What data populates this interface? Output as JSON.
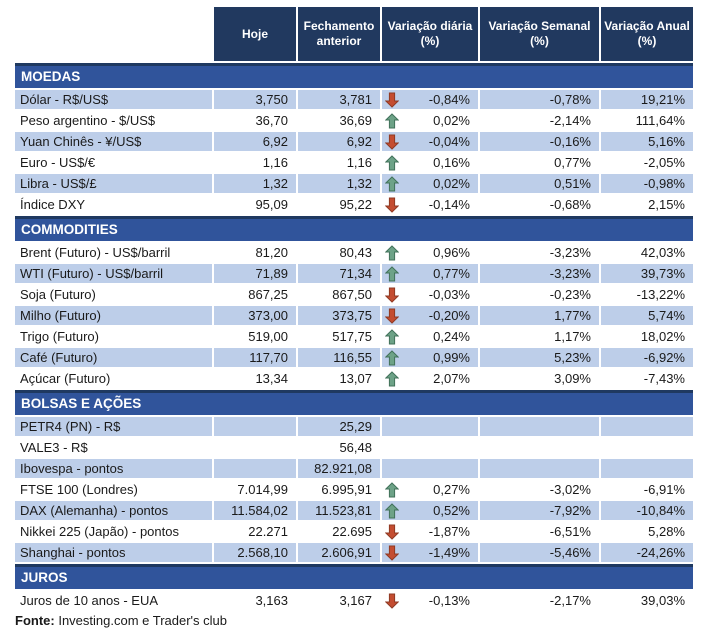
{
  "chart_data": {
    "type": "table",
    "columns": [
      "Hoje",
      "Fechamento anterior",
      "Variação diária (%)",
      "Variação Semanal (%)",
      "Variação Anual (%)"
    ],
    "sections": [
      {
        "title": "MOEDAS",
        "rows": [
          {
            "label": "Dólar - R$/US$",
            "hoje": "3,750",
            "fechamento": "3,781",
            "arrow": "down",
            "diaria": "-0,84%",
            "semanal": "-0,78%",
            "anual": "19,21%",
            "shaded": true
          },
          {
            "label": "Peso argentino - $/US$",
            "hoje": "36,70",
            "fechamento": "36,69",
            "arrow": "up",
            "diaria": "0,02%",
            "semanal": "-2,14%",
            "anual": "111,64%",
            "shaded": false
          },
          {
            "label": "Yuan Chinês - ¥/US$",
            "hoje": "6,92",
            "fechamento": "6,92",
            "arrow": "down",
            "diaria": "-0,04%",
            "semanal": "-0,16%",
            "anual": "5,16%",
            "shaded": true
          },
          {
            "label": "Euro - US$/€",
            "hoje": "1,16",
            "fechamento": "1,16",
            "arrow": "up",
            "diaria": "0,16%",
            "semanal": "0,77%",
            "anual": "-2,05%",
            "shaded": false
          },
          {
            "label": "Libra - US$/£",
            "hoje": "1,32",
            "fechamento": "1,32",
            "arrow": "up",
            "diaria": "0,02%",
            "semanal": "0,51%",
            "anual": "-0,98%",
            "shaded": true
          },
          {
            "label": "Índice DXY",
            "hoje": "95,09",
            "fechamento": "95,22",
            "arrow": "down",
            "diaria": "-0,14%",
            "semanal": "-0,68%",
            "anual": "2,15%",
            "shaded": false
          }
        ]
      },
      {
        "title": "COMMODITIES",
        "rows": [
          {
            "label": "Brent (Futuro) - US$/barril",
            "hoje": "81,20",
            "fechamento": "80,43",
            "arrow": "up",
            "diaria": "0,96%",
            "semanal": "-3,23%",
            "anual": "42,03%",
            "shaded": false
          },
          {
            "label": "WTI (Futuro) - US$/barril",
            "hoje": "71,89",
            "fechamento": "71,34",
            "arrow": "up",
            "diaria": "0,77%",
            "semanal": "-3,23%",
            "anual": "39,73%",
            "shaded": true
          },
          {
            "label": "Soja (Futuro)",
            "hoje": "867,25",
            "fechamento": "867,50",
            "arrow": "down",
            "diaria": "-0,03%",
            "semanal": "-0,23%",
            "anual": "-13,22%",
            "shaded": false
          },
          {
            "label": "Milho (Futuro)",
            "hoje": "373,00",
            "fechamento": "373,75",
            "arrow": "down",
            "diaria": "-0,20%",
            "semanal": "1,77%",
            "anual": "5,74%",
            "shaded": true
          },
          {
            "label": "Trigo (Futuro)",
            "hoje": "519,00",
            "fechamento": "517,75",
            "arrow": "up",
            "diaria": "0,24%",
            "semanal": "1,17%",
            "anual": "18,02%",
            "shaded": false
          },
          {
            "label": "Café (Futuro)",
            "hoje": "117,70",
            "fechamento": "116,55",
            "arrow": "up",
            "diaria": "0,99%",
            "semanal": "5,23%",
            "anual": "-6,92%",
            "shaded": true
          },
          {
            "label": "Açúcar (Futuro)",
            "hoje": "13,34",
            "fechamento": "13,07",
            "arrow": "up",
            "diaria": "2,07%",
            "semanal": "3,09%",
            "anual": "-7,43%",
            "shaded": false
          }
        ]
      },
      {
        "title": "BOLSAS E AÇÕES",
        "rows": [
          {
            "label": "PETR4 (PN) - R$",
            "hoje": "",
            "fechamento": "25,29",
            "arrow": "",
            "diaria": "",
            "semanal": "",
            "anual": "",
            "shaded": true
          },
          {
            "label": "VALE3 - R$",
            "hoje": "",
            "fechamento": "56,48",
            "arrow": "",
            "diaria": "",
            "semanal": "",
            "anual": "",
            "shaded": false
          },
          {
            "label": "Ibovespa - pontos",
            "hoje": "",
            "fechamento": "82.921,08",
            "arrow": "",
            "diaria": "",
            "semanal": "",
            "anual": "",
            "shaded": true
          },
          {
            "label": "FTSE 100 (Londres)",
            "hoje": "7.014,99",
            "fechamento": "6.995,91",
            "arrow": "up",
            "diaria": "0,27%",
            "semanal": "-3,02%",
            "anual": "-6,91%",
            "shaded": false
          },
          {
            "label": "DAX (Alemanha) - pontos",
            "hoje": "11.584,02",
            "fechamento": "11.523,81",
            "arrow": "up",
            "diaria": "0,52%",
            "semanal": "-7,92%",
            "anual": "-10,84%",
            "shaded": true
          },
          {
            "label": "Nikkei 225 (Japão) - pontos",
            "hoje": "22.271",
            "fechamento": "22.695",
            "arrow": "down",
            "diaria": "-1,87%",
            "semanal": "-6,51%",
            "anual": "5,28%",
            "shaded": false
          },
          {
            "label": "Shanghai - pontos",
            "hoje": "2.568,10",
            "fechamento": "2.606,91",
            "arrow": "down",
            "diaria": "-1,49%",
            "semanal": "-5,46%",
            "anual": "-24,26%",
            "shaded": true
          }
        ]
      },
      {
        "title": "JUROS",
        "rows": [
          {
            "label": "Juros de 10 anos - EUA",
            "hoje": "3,163",
            "fechamento": "3,167",
            "arrow": "down",
            "diaria": "-0,13%",
            "semanal": "-2,17%",
            "anual": "39,03%",
            "shaded": false
          }
        ]
      }
    ]
  },
  "footer": {
    "bold": "Fonte:",
    "text": " Investing.com e Trader's club"
  },
  "colors": {
    "header_bg": "#21395F",
    "band_bg": "#30549B",
    "band_border": "#1F3960",
    "row_shade": "#BDCEE9",
    "up_arrow_fill": "#6DA287",
    "up_arrow_stroke": "#41715A",
    "down_arrow_fill": "#C44D31",
    "down_arrow_stroke": "#8F3A24",
    "header_text": "#FFFFFF",
    "body_text": "#1A1A1A"
  }
}
